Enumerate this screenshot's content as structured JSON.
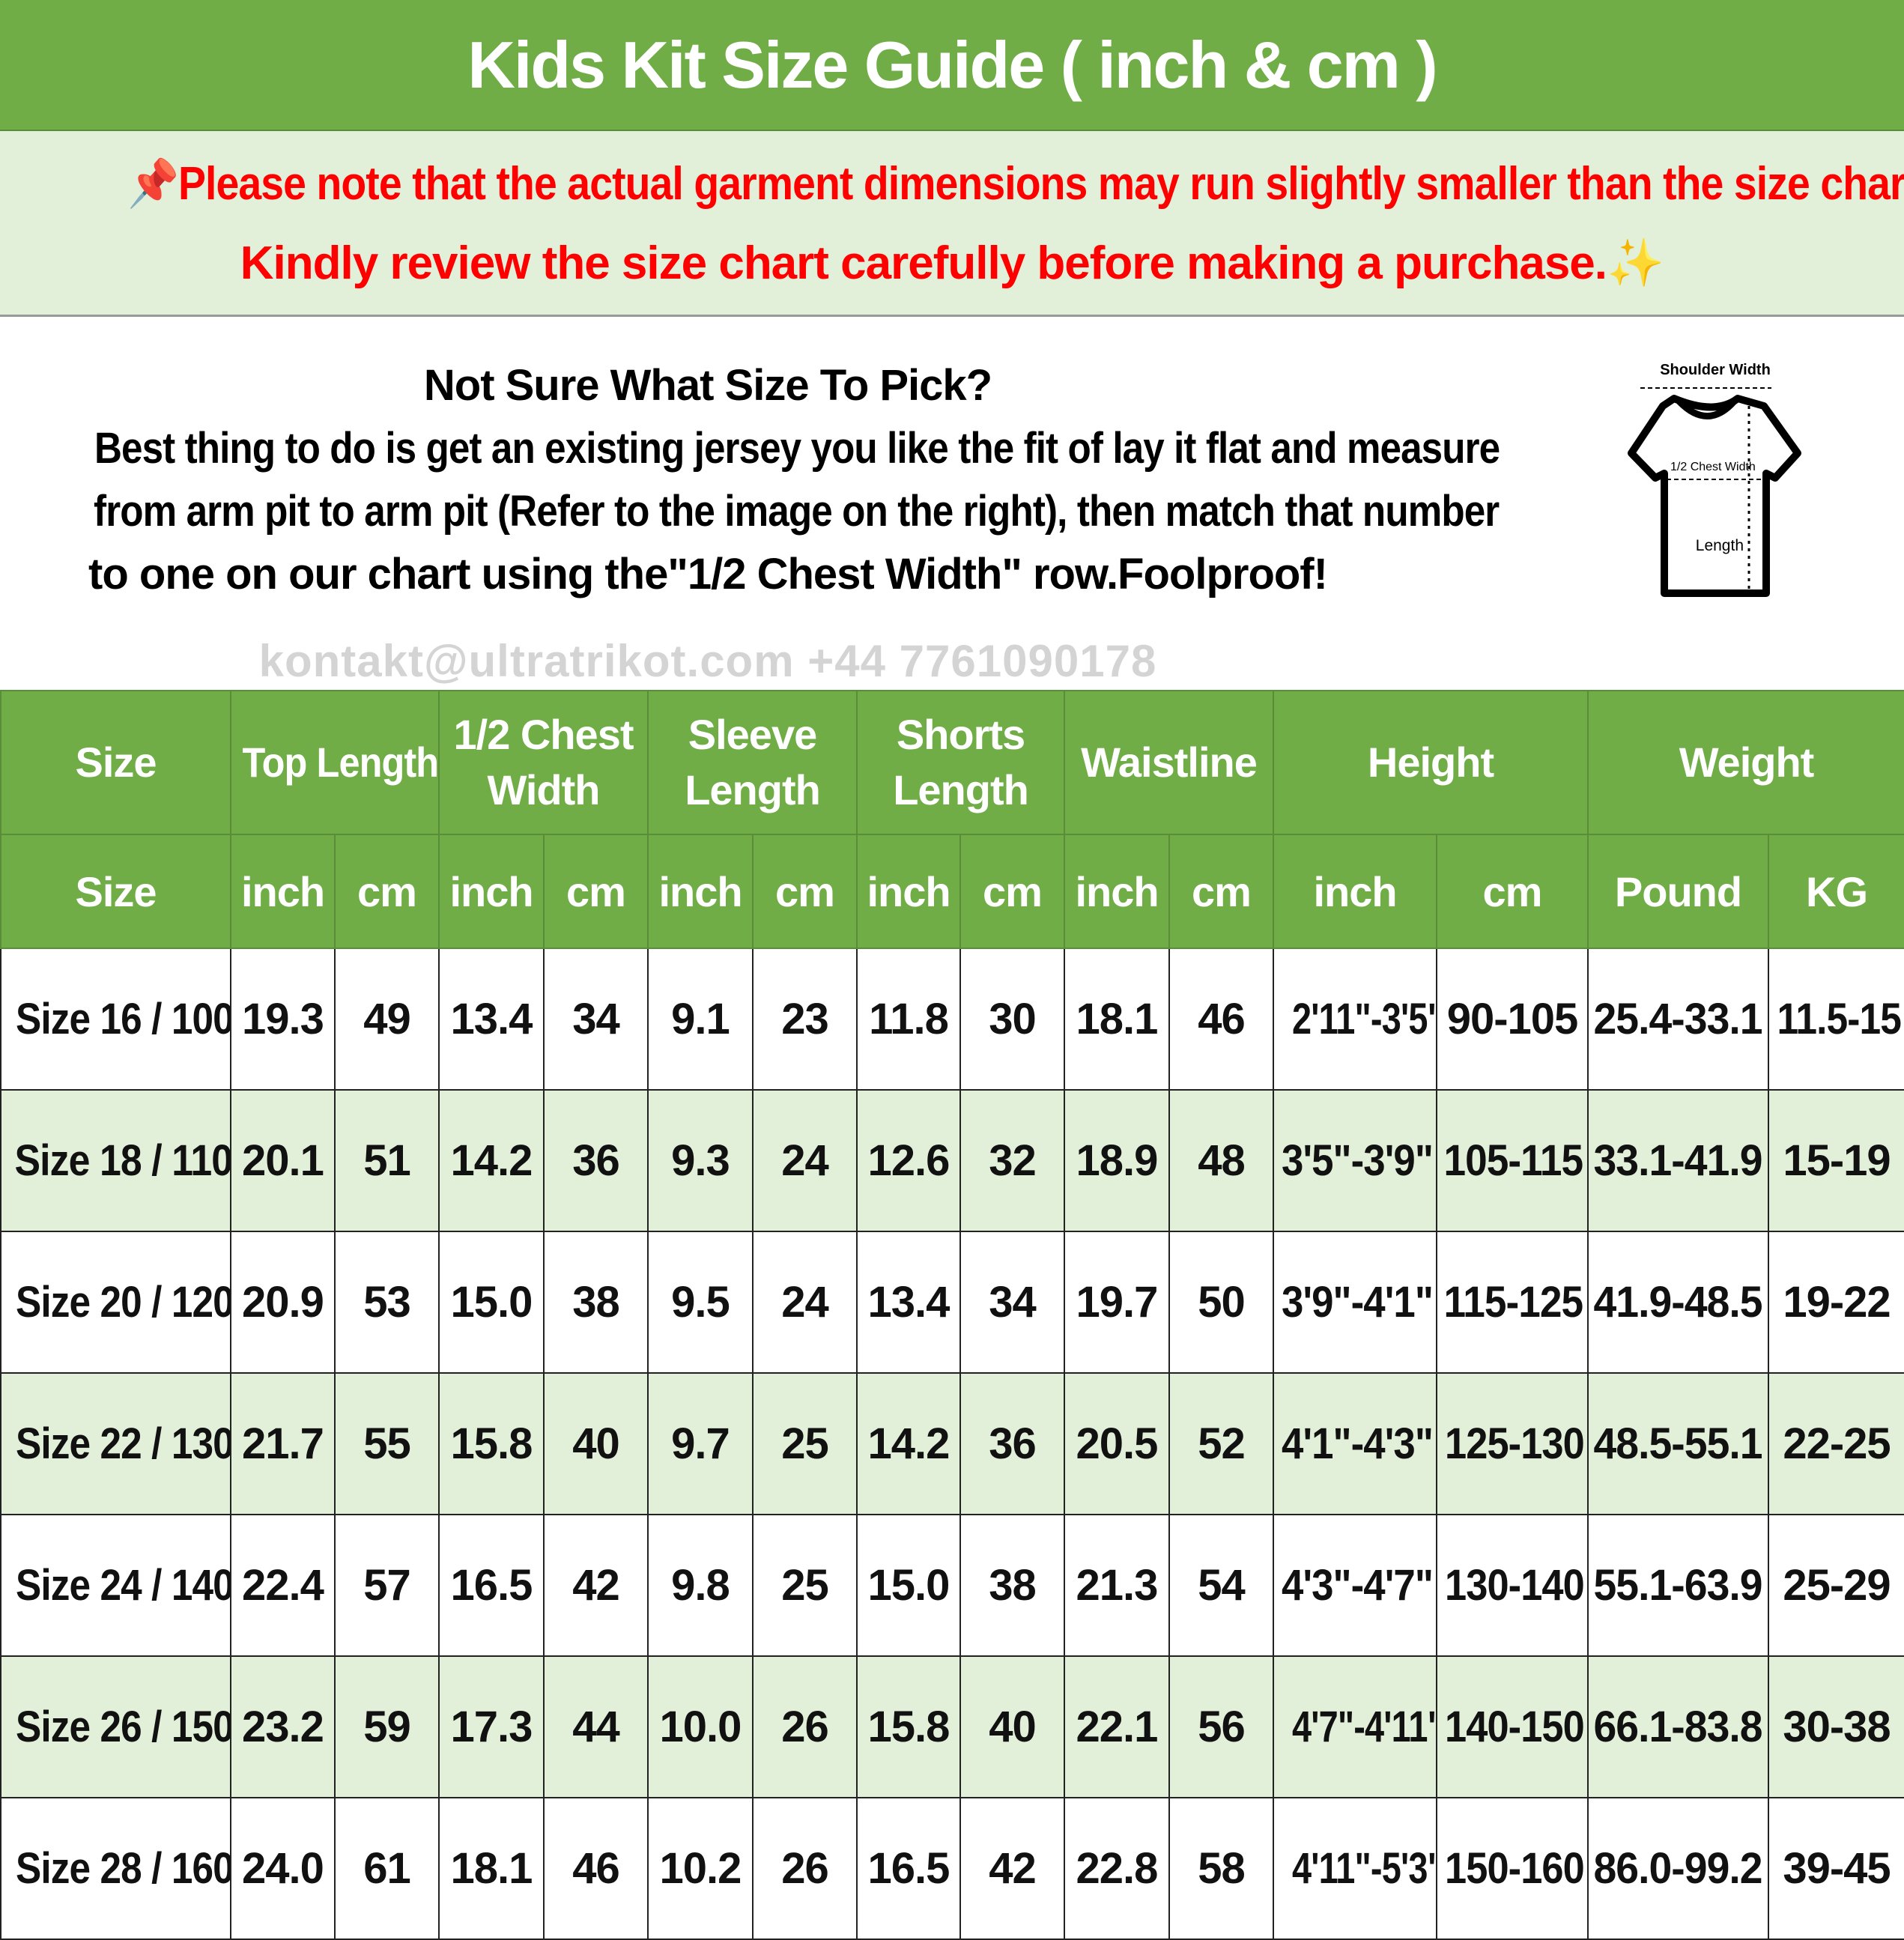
{
  "title": "Kids Kit Size Guide ( inch & cm )",
  "note": {
    "line1": "📌Please note that the actual garment dimensions may run slightly smaller than the size chart 📏.",
    "line2": "Kindly review the size chart carefully before making a purchase.✨"
  },
  "info": {
    "heading": "Not Sure What Size To Pick?",
    "line1": "Best thing to do is get an existing jersey you like the fit of lay it flat and measure",
    "line2": "from arm pit to arm pit (Refer to the image on the right), then match that number",
    "line3": "to one on our chart using the\"1/2 Chest Width\" row.Foolproof!"
  },
  "diagram": {
    "shoulder": "Shoulder Width",
    "chest": "1/2 Chest Width",
    "length": "Length"
  },
  "watermark": "kontakt@ultratrikot.com  +44 7761090178",
  "table": {
    "groups": [
      {
        "line1": "Size",
        "line2": ""
      },
      {
        "line1": "Top Length",
        "line2": ""
      },
      {
        "line1": "1/2 Chest",
        "line2": "Width"
      },
      {
        "line1": "Sleeve",
        "line2": "Length"
      },
      {
        "line1": "Shorts",
        "line2": "Length"
      },
      {
        "line1": "Waistline",
        "line2": ""
      },
      {
        "line1": "Height",
        "line2": ""
      },
      {
        "line1": "Weight",
        "line2": ""
      }
    ],
    "units": [
      "Size",
      "inch",
      "cm",
      "inch",
      "cm",
      "inch",
      "cm",
      "inch",
      "cm",
      "inch",
      "cm",
      "inch",
      "cm",
      "Pound",
      "KG"
    ],
    "rows": [
      [
        "Size 16 / 100",
        "19.3",
        "49",
        "13.4",
        "34",
        "9.1",
        "23",
        "11.8",
        "30",
        "18.1",
        "46",
        "2'11\"-3'5\"",
        "90-105",
        "25.4-33.1",
        "11.5-15"
      ],
      [
        "Size 18 / 110",
        "20.1",
        "51",
        "14.2",
        "36",
        "9.3",
        "24",
        "12.6",
        "32",
        "18.9",
        "48",
        "3'5\"-3'9\"",
        "105-115",
        "33.1-41.9",
        "15-19"
      ],
      [
        "Size 20 / 120",
        "20.9",
        "53",
        "15.0",
        "38",
        "9.5",
        "24",
        "13.4",
        "34",
        "19.7",
        "50",
        "3'9\"-4'1\"",
        "115-125",
        "41.9-48.5",
        "19-22"
      ],
      [
        "Size 22 / 130",
        "21.7",
        "55",
        "15.8",
        "40",
        "9.7",
        "25",
        "14.2",
        "36",
        "20.5",
        "52",
        "4'1\"-4'3\"",
        "125-130",
        "48.5-55.1",
        "22-25"
      ],
      [
        "Size 24 / 140",
        "22.4",
        "57",
        "16.5",
        "42",
        "9.8",
        "25",
        "15.0",
        "38",
        "21.3",
        "54",
        "4'3\"-4'7\"",
        "130-140",
        "55.1-63.9",
        "25-29"
      ],
      [
        "Size 26 / 150",
        "23.2",
        "59",
        "17.3",
        "44",
        "10.0",
        "26",
        "15.8",
        "40",
        "22.1",
        "56",
        "4'7\"-4'11\"",
        "140-150",
        "66.1-83.8",
        "30-38"
      ],
      [
        "Size 28 / 160",
        "24.0",
        "61",
        "18.1",
        "46",
        "10.2",
        "26",
        "16.5",
        "42",
        "22.8",
        "58",
        "4'11\"-5'3\"",
        "150-160",
        "86.0-99.2",
        "39-45"
      ]
    ]
  },
  "colors": {
    "header_green": "#70ad47",
    "alt_row": "#e2efd9",
    "note_red": "#ff0000"
  }
}
